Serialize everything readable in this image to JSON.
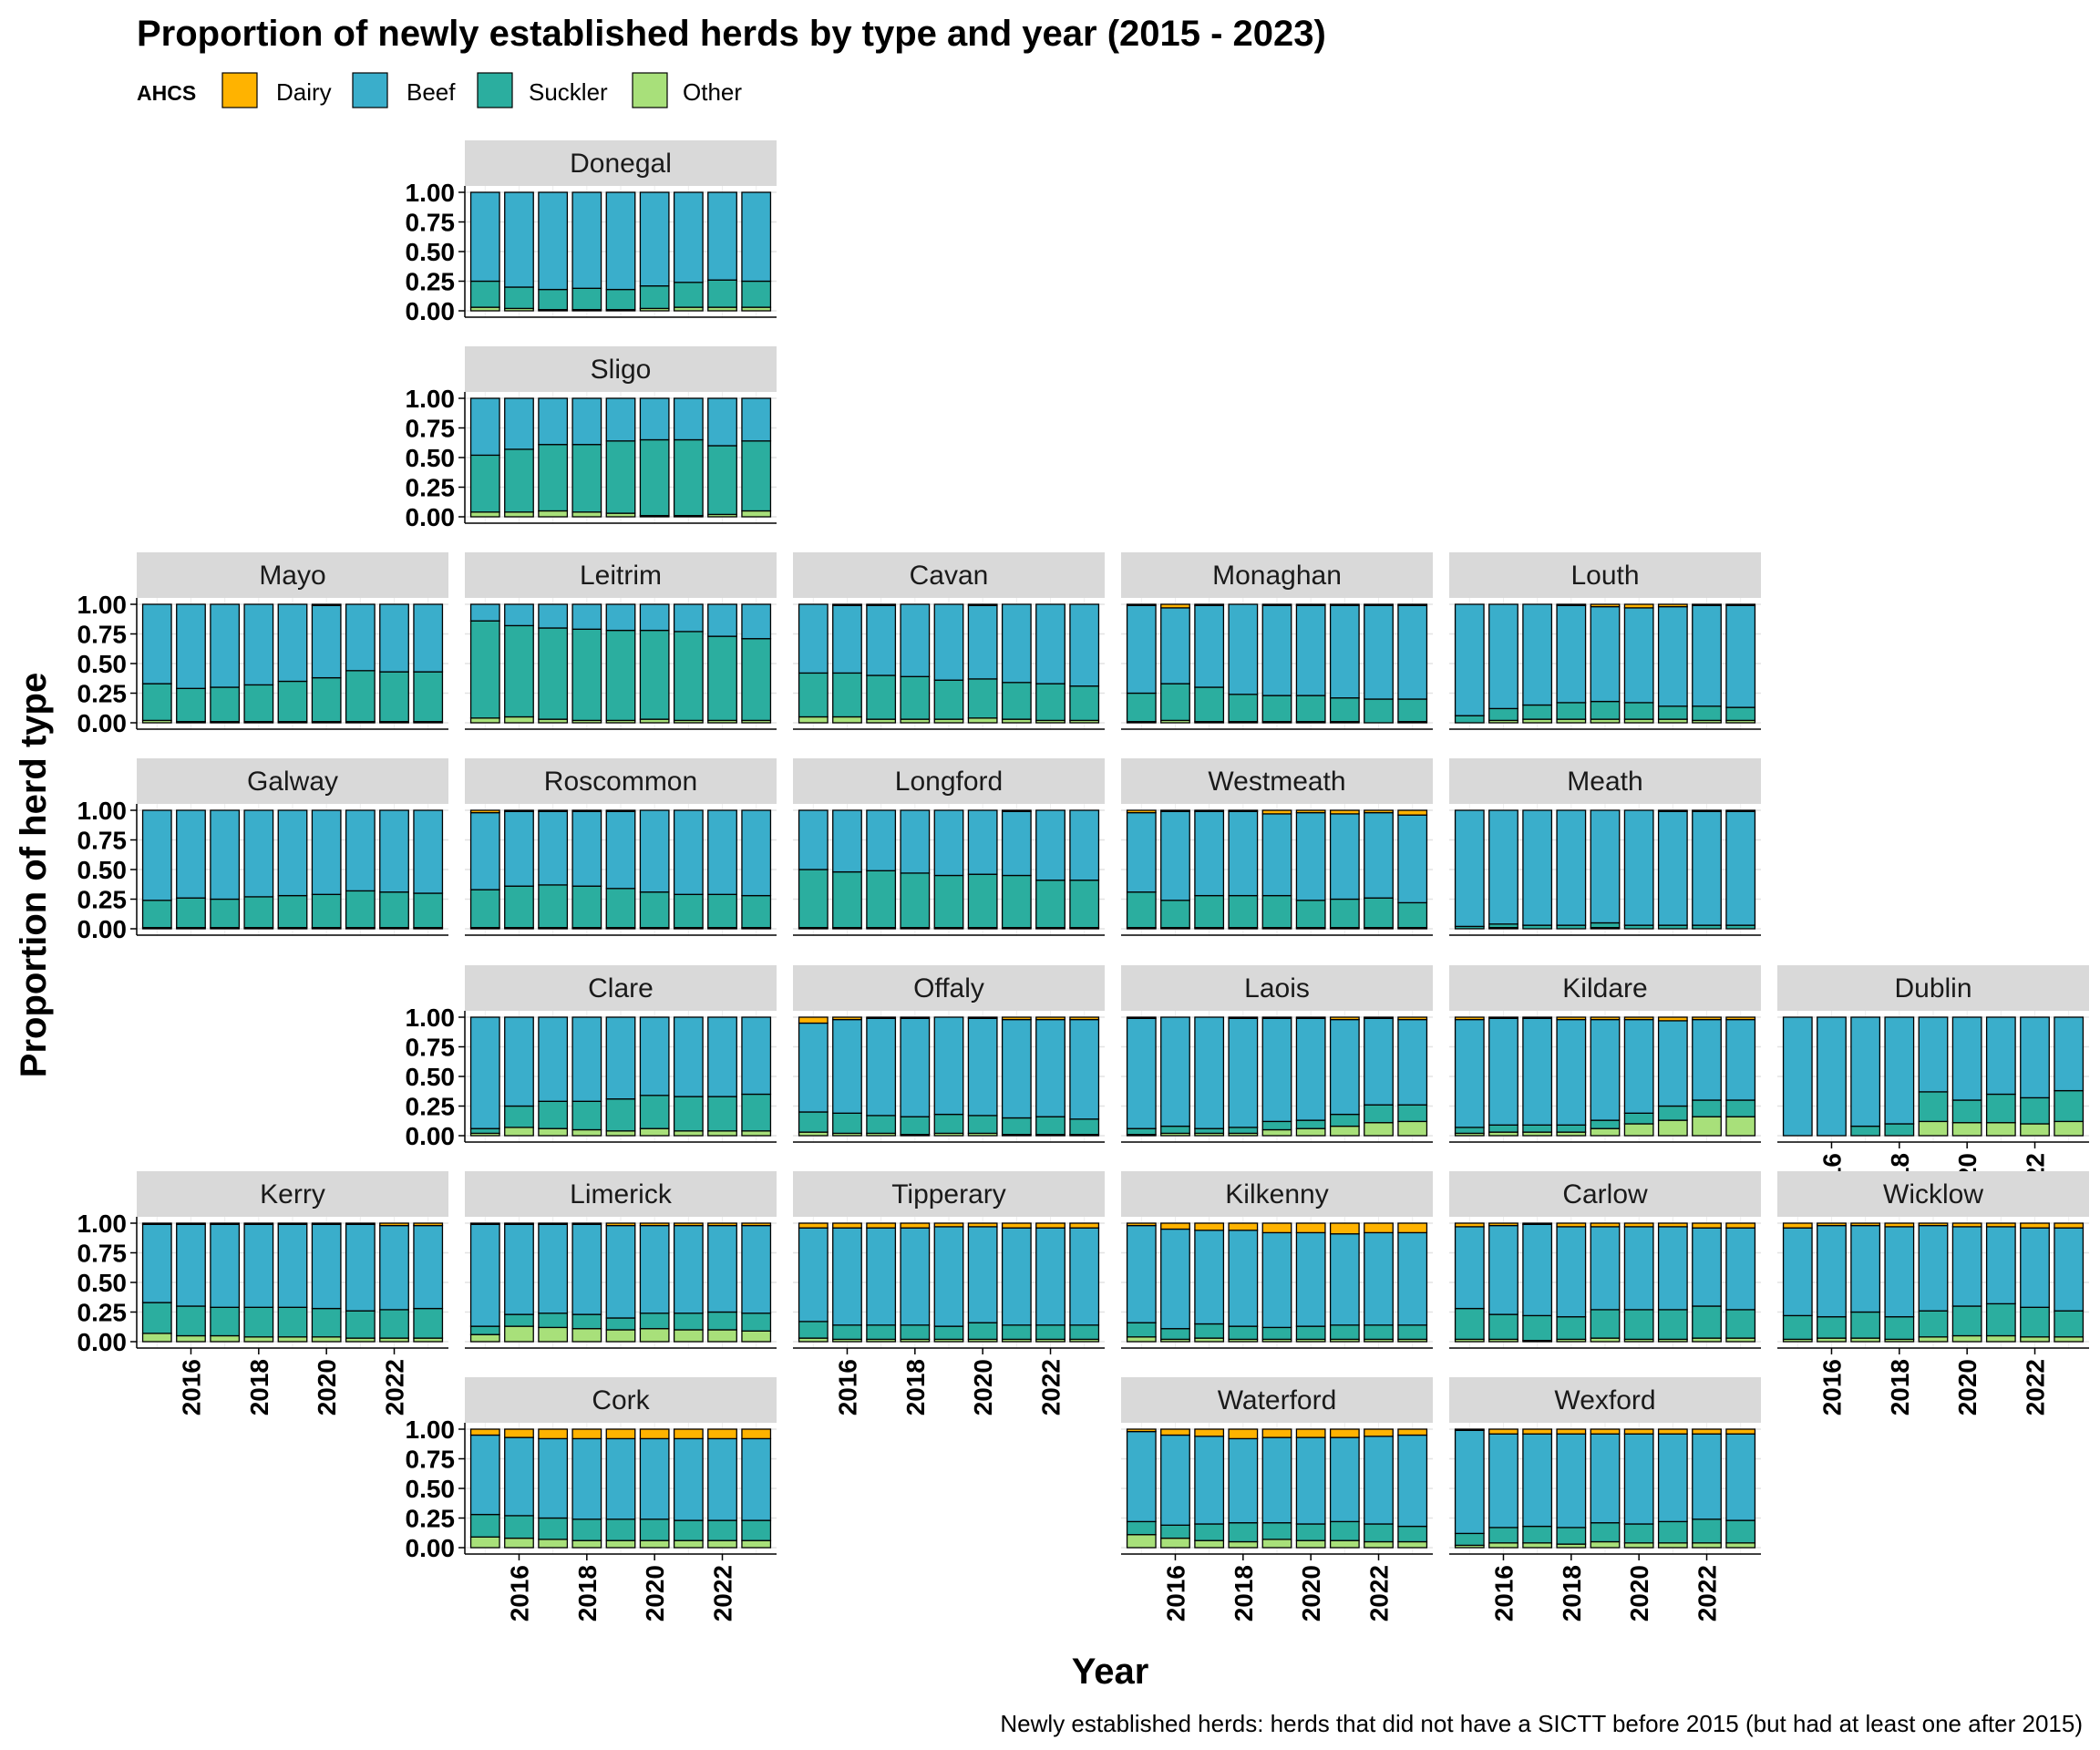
{
  "chart_data": {
    "type": "bar",
    "stacking": "fill",
    "title": "Proportion of newly established herds by type and year (2015 - 2023)",
    "xlabel": "Year",
    "ylabel": "Proportion of herd type",
    "caption": "Newly established herds: herds that did not have a SICTT before 2015 (but had at least one after 2015)",
    "legend": {
      "title": "AHCS",
      "position": "top-left",
      "items": [
        {
          "name": "Dairy",
          "color": "#FFB300"
        },
        {
          "name": "Beef",
          "color": "#3AAECB"
        },
        {
          "name": "Suckler",
          "color": "#2BAE9F"
        },
        {
          "name": "Other",
          "color": "#A8E07A"
        }
      ]
    },
    "x": [
      2015,
      2016,
      2017,
      2018,
      2019,
      2020,
      2021,
      2022,
      2023
    ],
    "x_ticks": [
      "2016",
      "2018",
      "2020",
      "2022"
    ],
    "y_ticks": [
      "0.00",
      "0.25",
      "0.50",
      "0.75",
      "1.00"
    ],
    "ylim": [
      0,
      1
    ],
    "grid": true,
    "series_order": [
      "Other",
      "Suckler",
      "Beef",
      "Dairy"
    ],
    "panels": [
      {
        "name": "Donegal",
        "dairy": [
          0.0,
          0.0,
          0.0,
          0.0,
          0.0,
          0.0,
          0.0,
          0.0,
          0.0
        ],
        "suckler": [
          0.22,
          0.18,
          0.17,
          0.18,
          0.17,
          0.19,
          0.21,
          0.23,
          0.22
        ],
        "other": [
          0.03,
          0.02,
          0.01,
          0.01,
          0.01,
          0.02,
          0.03,
          0.03,
          0.03
        ]
      },
      {
        "name": "Sligo",
        "dairy": [
          0.0,
          0.0,
          0.0,
          0.0,
          0.0,
          0.0,
          0.0,
          0.0,
          0.0
        ],
        "suckler": [
          0.48,
          0.53,
          0.56,
          0.57,
          0.61,
          0.64,
          0.64,
          0.58,
          0.59
        ],
        "other": [
          0.04,
          0.04,
          0.05,
          0.04,
          0.03,
          0.01,
          0.01,
          0.02,
          0.05
        ]
      },
      {
        "name": "Mayo",
        "dairy": [
          0.0,
          0.0,
          0.0,
          0.0,
          0.0,
          0.01,
          0.0,
          0.0,
          0.0
        ],
        "suckler": [
          0.31,
          0.28,
          0.29,
          0.31,
          0.34,
          0.37,
          0.43,
          0.42,
          0.42
        ],
        "other": [
          0.02,
          0.01,
          0.01,
          0.01,
          0.01,
          0.01,
          0.01,
          0.01,
          0.01
        ]
      },
      {
        "name": "Leitrim",
        "dairy": [
          0.0,
          0.0,
          0.0,
          0.0,
          0.0,
          0.0,
          0.0,
          0.0,
          0.0
        ],
        "suckler": [
          0.82,
          0.77,
          0.77,
          0.77,
          0.76,
          0.75,
          0.75,
          0.71,
          0.69
        ],
        "other": [
          0.04,
          0.05,
          0.03,
          0.02,
          0.02,
          0.03,
          0.02,
          0.02,
          0.02
        ]
      },
      {
        "name": "Cavan",
        "dairy": [
          0.0,
          0.01,
          0.01,
          0.0,
          0.0,
          0.01,
          0.0,
          0.0,
          0.0
        ],
        "suckler": [
          0.37,
          0.37,
          0.37,
          0.36,
          0.33,
          0.33,
          0.31,
          0.31,
          0.29
        ],
        "other": [
          0.05,
          0.05,
          0.03,
          0.03,
          0.03,
          0.04,
          0.03,
          0.02,
          0.02
        ]
      },
      {
        "name": "Monaghan",
        "dairy": [
          0.01,
          0.03,
          0.01,
          0.0,
          0.01,
          0.01,
          0.01,
          0.01,
          0.01
        ],
        "suckler": [
          0.24,
          0.31,
          0.29,
          0.23,
          0.22,
          0.22,
          0.2,
          0.2,
          0.19
        ],
        "other": [
          0.01,
          0.02,
          0.01,
          0.01,
          0.01,
          0.01,
          0.01,
          0.0,
          0.01
        ]
      },
      {
        "name": "Louth",
        "dairy": [
          0.0,
          0.0,
          0.0,
          0.01,
          0.02,
          0.03,
          0.02,
          0.01,
          0.01
        ],
        "suckler": [
          0.06,
          0.1,
          0.12,
          0.14,
          0.15,
          0.14,
          0.11,
          0.12,
          0.11
        ],
        "other": [
          0.0,
          0.02,
          0.03,
          0.03,
          0.03,
          0.03,
          0.03,
          0.02,
          0.02
        ]
      },
      {
        "name": "Galway",
        "dairy": [
          0.0,
          0.0,
          0.0,
          0.0,
          0.0,
          0.0,
          0.0,
          0.0,
          0.0
        ],
        "suckler": [
          0.23,
          0.25,
          0.24,
          0.26,
          0.27,
          0.28,
          0.31,
          0.3,
          0.29
        ],
        "other": [
          0.01,
          0.01,
          0.01,
          0.01,
          0.01,
          0.01,
          0.01,
          0.01,
          0.01
        ]
      },
      {
        "name": "Roscommon",
        "dairy": [
          0.02,
          0.01,
          0.01,
          0.01,
          0.01,
          0.0,
          0.0,
          0.0,
          0.0
        ],
        "suckler": [
          0.32,
          0.35,
          0.36,
          0.35,
          0.33,
          0.3,
          0.28,
          0.28,
          0.27
        ],
        "other": [
          0.01,
          0.01,
          0.01,
          0.01,
          0.01,
          0.01,
          0.01,
          0.01,
          0.01
        ]
      },
      {
        "name": "Longford",
        "dairy": [
          0.0,
          0.0,
          0.0,
          0.0,
          0.0,
          0.0,
          0.01,
          0.0,
          0.0
        ],
        "suckler": [
          0.49,
          0.47,
          0.48,
          0.46,
          0.44,
          0.45,
          0.44,
          0.4,
          0.4
        ],
        "other": [
          0.01,
          0.01,
          0.01,
          0.01,
          0.01,
          0.01,
          0.01,
          0.01,
          0.01
        ]
      },
      {
        "name": "Westmeath",
        "dairy": [
          0.02,
          0.01,
          0.01,
          0.01,
          0.03,
          0.02,
          0.03,
          0.02,
          0.04
        ],
        "suckler": [
          0.3,
          0.23,
          0.27,
          0.27,
          0.27,
          0.23,
          0.24,
          0.25,
          0.21
        ],
        "other": [
          0.01,
          0.01,
          0.01,
          0.01,
          0.01,
          0.01,
          0.01,
          0.01,
          0.01
        ]
      },
      {
        "name": "Meath",
        "dairy": [
          0.0,
          0.0,
          0.0,
          0.0,
          0.0,
          0.0,
          0.01,
          0.01,
          0.01
        ],
        "suckler": [
          0.02,
          0.03,
          0.03,
          0.03,
          0.04,
          0.03,
          0.03,
          0.03,
          0.03
        ],
        "other": [
          0.0,
          0.01,
          0.0,
          0.0,
          0.01,
          0.0,
          0.0,
          0.0,
          0.0
        ]
      },
      {
        "name": "Clare",
        "dairy": [
          0.0,
          0.0,
          0.0,
          0.0,
          0.0,
          0.0,
          0.0,
          0.0,
          0.0
        ],
        "suckler": [
          0.04,
          0.18,
          0.23,
          0.24,
          0.27,
          0.28,
          0.29,
          0.29,
          0.31
        ],
        "other": [
          0.02,
          0.07,
          0.06,
          0.05,
          0.04,
          0.06,
          0.04,
          0.04,
          0.04
        ]
      },
      {
        "name": "Offaly",
        "dairy": [
          0.05,
          0.02,
          0.01,
          0.01,
          0.0,
          0.01,
          0.02,
          0.02,
          0.02
        ],
        "suckler": [
          0.17,
          0.17,
          0.15,
          0.15,
          0.16,
          0.15,
          0.14,
          0.15,
          0.13
        ],
        "other": [
          0.03,
          0.02,
          0.02,
          0.01,
          0.02,
          0.02,
          0.01,
          0.01,
          0.01
        ]
      },
      {
        "name": "Laois",
        "dairy": [
          0.01,
          0.0,
          0.0,
          0.01,
          0.01,
          0.01,
          0.02,
          0.01,
          0.02
        ],
        "suckler": [
          0.05,
          0.06,
          0.04,
          0.05,
          0.07,
          0.07,
          0.1,
          0.15,
          0.14
        ],
        "other": [
          0.01,
          0.02,
          0.02,
          0.02,
          0.05,
          0.06,
          0.08,
          0.11,
          0.12
        ]
      },
      {
        "name": "Kildare",
        "dairy": [
          0.02,
          0.01,
          0.01,
          0.02,
          0.02,
          0.02,
          0.03,
          0.02,
          0.02
        ],
        "suckler": [
          0.05,
          0.06,
          0.06,
          0.06,
          0.07,
          0.09,
          0.12,
          0.14,
          0.14
        ],
        "other": [
          0.02,
          0.03,
          0.03,
          0.03,
          0.06,
          0.1,
          0.13,
          0.16,
          0.16
        ]
      },
      {
        "name": "Dublin",
        "dairy": [
          0.0,
          0.0,
          0.0,
          0.0,
          0.0,
          0.0,
          0.0,
          0.0,
          0.0
        ],
        "suckler": [
          0.0,
          0.0,
          0.08,
          0.1,
          0.25,
          0.19,
          0.24,
          0.22,
          0.26
        ],
        "other": [
          0.0,
          0.0,
          0.0,
          0.0,
          0.12,
          0.11,
          0.11,
          0.1,
          0.12
        ]
      },
      {
        "name": "Kerry",
        "dairy": [
          0.01,
          0.01,
          0.01,
          0.01,
          0.01,
          0.01,
          0.01,
          0.02,
          0.02
        ],
        "suckler": [
          0.26,
          0.25,
          0.24,
          0.25,
          0.25,
          0.24,
          0.23,
          0.24,
          0.25
        ],
        "other": [
          0.07,
          0.05,
          0.05,
          0.04,
          0.04,
          0.04,
          0.03,
          0.03,
          0.03
        ]
      },
      {
        "name": "Limerick",
        "dairy": [
          0.01,
          0.01,
          0.01,
          0.01,
          0.02,
          0.02,
          0.02,
          0.02,
          0.02
        ],
        "suckler": [
          0.07,
          0.1,
          0.12,
          0.12,
          0.1,
          0.13,
          0.14,
          0.15,
          0.15
        ],
        "other": [
          0.06,
          0.13,
          0.12,
          0.11,
          0.1,
          0.11,
          0.1,
          0.1,
          0.09
        ]
      },
      {
        "name": "Tipperary",
        "dairy": [
          0.04,
          0.04,
          0.04,
          0.04,
          0.03,
          0.03,
          0.04,
          0.04,
          0.04
        ],
        "suckler": [
          0.14,
          0.12,
          0.12,
          0.12,
          0.11,
          0.14,
          0.12,
          0.12,
          0.12
        ],
        "other": [
          0.03,
          0.02,
          0.02,
          0.02,
          0.02,
          0.02,
          0.02,
          0.02,
          0.02
        ]
      },
      {
        "name": "Kilkenny",
        "dairy": [
          0.02,
          0.05,
          0.06,
          0.06,
          0.08,
          0.08,
          0.09,
          0.08,
          0.08
        ],
        "suckler": [
          0.12,
          0.09,
          0.12,
          0.11,
          0.1,
          0.11,
          0.12,
          0.12,
          0.12
        ],
        "other": [
          0.04,
          0.02,
          0.03,
          0.02,
          0.02,
          0.02,
          0.02,
          0.02,
          0.02
        ]
      },
      {
        "name": "Carlow",
        "dairy": [
          0.03,
          0.02,
          0.01,
          0.03,
          0.03,
          0.03,
          0.03,
          0.04,
          0.04
        ],
        "suckler": [
          0.26,
          0.21,
          0.21,
          0.19,
          0.24,
          0.25,
          0.25,
          0.27,
          0.24
        ],
        "other": [
          0.02,
          0.02,
          0.01,
          0.02,
          0.03,
          0.02,
          0.02,
          0.03,
          0.03
        ]
      },
      {
        "name": "Wicklow",
        "dairy": [
          0.04,
          0.02,
          0.02,
          0.03,
          0.02,
          0.03,
          0.03,
          0.04,
          0.04
        ],
        "suckler": [
          0.2,
          0.18,
          0.22,
          0.19,
          0.22,
          0.25,
          0.27,
          0.25,
          0.22
        ],
        "other": [
          0.02,
          0.03,
          0.03,
          0.02,
          0.04,
          0.05,
          0.05,
          0.04,
          0.04
        ]
      },
      {
        "name": "Cork",
        "dairy": [
          0.05,
          0.07,
          0.08,
          0.08,
          0.08,
          0.08,
          0.08,
          0.08,
          0.08
        ],
        "suckler": [
          0.19,
          0.19,
          0.18,
          0.18,
          0.18,
          0.18,
          0.17,
          0.17,
          0.17
        ],
        "other": [
          0.09,
          0.08,
          0.07,
          0.06,
          0.06,
          0.06,
          0.06,
          0.06,
          0.06
        ]
      },
      {
        "name": "Waterford",
        "dairy": [
          0.02,
          0.05,
          0.06,
          0.08,
          0.07,
          0.07,
          0.07,
          0.06,
          0.05
        ],
        "suckler": [
          0.11,
          0.11,
          0.14,
          0.16,
          0.14,
          0.14,
          0.16,
          0.15,
          0.13
        ],
        "other": [
          0.11,
          0.08,
          0.06,
          0.05,
          0.07,
          0.06,
          0.06,
          0.05,
          0.05
        ]
      },
      {
        "name": "Wexford",
        "dairy": [
          0.01,
          0.04,
          0.04,
          0.04,
          0.04,
          0.04,
          0.04,
          0.04,
          0.04
        ],
        "suckler": [
          0.1,
          0.13,
          0.14,
          0.14,
          0.16,
          0.16,
          0.18,
          0.2,
          0.19
        ],
        "other": [
          0.02,
          0.04,
          0.04,
          0.03,
          0.05,
          0.04,
          0.04,
          0.04,
          0.04
        ]
      }
    ]
  }
}
